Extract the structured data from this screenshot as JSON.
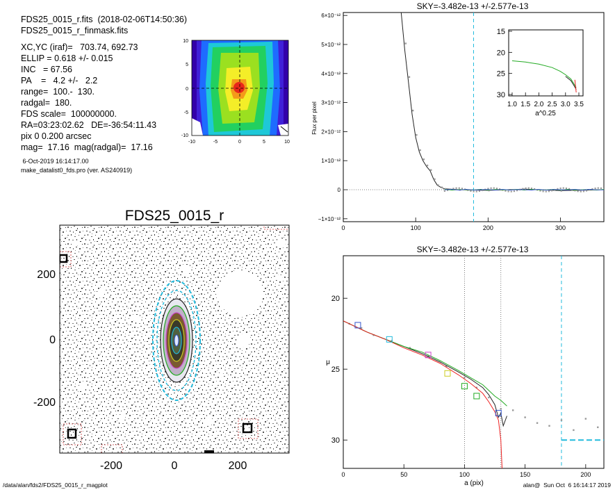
{
  "header": {
    "lines": [
      "FDS25_0015_r.fits  (2018-02-06T14:50:36)",
      "FDS25_0015_r_finmask.fits"
    ],
    "params": [
      "XC,YC (iraf)=   703.74, 692.73",
      "ELLIP = 0.618 +/- 0.015",
      "INC   = 67.56",
      "PA    =   4.2 +/-   2.2",
      "range=  100.-  130.",
      "radgal=  180.",
      "FDS scale=  100000000.",
      "RA=03:23:02.62   DE=-36:54:11.43",
      "pix 0 0.200 arcsec",
      "mag=  17.16  mag(radgal)=  17.16"
    ],
    "date": " 6-Oct-2019 16:14:17.00",
    "program": "make_datalist0_fds.pro (ver. AS240919)"
  },
  "footer": {
    "path": "/data/alan/fds2/FDS25_0015_r_magplot",
    "stamp": "alan@  Sun Oct  6 16:14:17 2019"
  },
  "colors": {
    "profile_dark": "#222222",
    "profile_green": "#22aa22",
    "profile_red": "#ee2222",
    "profile_purple": "#8844cc",
    "profile_gray": "#999999",
    "cyan": "#22bbdd",
    "sky_dotted": "#555555"
  },
  "chart_data": [
    {
      "id": "thumbnail",
      "type": "heatmap",
      "description": "false-color 2D cutout of galaxy center",
      "xlim": [
        -10,
        10
      ],
      "ylim": [
        -10,
        10
      ],
      "x_ticks": [
        "-10",
        "-5",
        "0",
        "5",
        "10"
      ],
      "y_ticks": [
        "10",
        "5",
        "0",
        "-5",
        "-10"
      ]
    },
    {
      "id": "image",
      "type": "heatmap",
      "title": "FDS25_0015_r",
      "xlim": [
        -360,
        360
      ],
      "ylim": [
        -360,
        360
      ],
      "x_ticks": [
        "-200",
        "0",
        "200"
      ],
      "y_ticks": [
        "200",
        "0",
        "-200"
      ],
      "ellipses_a": [
        30,
        55,
        90,
        130,
        180
      ],
      "ellipse_colors": [
        "#22bbdd",
        "#cccc22",
        "#cc44cc",
        "#22aa22",
        "#222222"
      ],
      "aperture_boxes": [
        [
          -350,
          260
        ],
        [
          -320,
          -300
        ],
        [
          210,
          -285
        ],
        [
          -200,
          -360
        ],
        [
          110,
          -360
        ]
      ]
    },
    {
      "id": "flux",
      "type": "line",
      "title": "SKY=-3.482e-13 +/-2.577e-13",
      "xlabel": "",
      "ylabel": "Flux per pixel",
      "xlim": [
        0,
        360
      ],
      "ylim": [
        -1.1e-12,
        6.1e-12
      ],
      "x_ticks": [
        "0",
        "100",
        "200",
        "300"
      ],
      "y_ticks": [
        "6×10⁻¹²",
        "5×10⁻¹²",
        "4×10⁻¹²",
        "3×10⁻¹²",
        "2×10⁻¹²",
        "1×10⁻¹²",
        "0",
        "−1×10⁻¹²"
      ],
      "x": [
        80,
        85,
        90,
        95,
        100,
        105,
        110,
        115,
        120,
        125,
        130,
        135,
        140,
        160,
        200,
        250,
        300,
        360
      ],
      "y": [
        6.1e-12,
        4.8e-12,
        3.7e-12,
        2.6e-12,
        1.8e-12,
        1.3e-12,
        1e-12,
        8e-13,
        6.5e-13,
        3.5e-13,
        1.5e-13,
        8e-14,
        3e-14,
        0.0,
        -2e-14,
        2e-14,
        -3e-14,
        0.0
      ],
      "sky_level": 0,
      "cyan_vline_x": 180,
      "inset": {
        "xlabel": "a^0.25",
        "xlim": [
          1.0,
          3.5
        ],
        "ylim": [
          15,
          30
        ],
        "x_ticks": [
          "1.0",
          "1.5",
          "2.0",
          "2.5",
          "3.0",
          "3.5"
        ],
        "y_ticks": [
          "15",
          "20",
          "25",
          "30"
        ],
        "x": [
          1.0,
          1.5,
          2.0,
          2.5,
          2.8,
          3.0,
          3.2,
          3.3,
          3.4
        ],
        "y": [
          22.0,
          22.3,
          22.8,
          23.6,
          24.5,
          25.3,
          26.3,
          27.3,
          28.4
        ]
      }
    },
    {
      "id": "mu",
      "type": "line",
      "title": "SKY=-3.482e-13 +/-2.577e-13",
      "xlabel": "a (pix)",
      "ylabel": "μ",
      "xlim": [
        0,
        215
      ],
      "ylim": [
        32,
        17
      ],
      "x_ticks": [
        "0",
        "50",
        "100",
        "150",
        "200"
      ],
      "y_ticks": [
        "20",
        "25",
        "30"
      ],
      "vlines_dotted": [
        100,
        130
      ],
      "vline_cyan": 180,
      "sky_dashed_level": 30.0,
      "series": [
        {
          "color_key": "profile_dark",
          "x": [
            0,
            10,
            20,
            35,
            50,
            65,
            80,
            95,
            105,
            115,
            120,
            125,
            128,
            130,
            132,
            135
          ],
          "y": [
            21.6,
            22.0,
            22.4,
            22.9,
            23.4,
            23.9,
            24.5,
            25.2,
            25.7,
            26.3,
            26.8,
            27.5,
            28.4,
            28.1,
            29.0,
            28.3
          ]
        },
        {
          "color_key": "profile_green",
          "x": [
            0,
            10,
            20,
            35,
            50,
            65,
            80,
            95,
            105,
            115,
            120,
            125,
            130,
            135
          ],
          "y": [
            21.6,
            22.0,
            22.4,
            22.9,
            23.4,
            23.8,
            24.4,
            25.1,
            25.6,
            26.1,
            26.5,
            26.9,
            27.2,
            27.6
          ]
        },
        {
          "color_key": "profile_red",
          "x": [
            0,
            10,
            20,
            35,
            50,
            65,
            80,
            95,
            105,
            115,
            120,
            125,
            128,
            130,
            131
          ],
          "y": [
            21.6,
            22.0,
            22.4,
            22.9,
            23.5,
            24.0,
            24.6,
            25.4,
            26.0,
            26.7,
            27.3,
            28.0,
            28.6,
            30.0,
            32.0
          ]
        }
      ],
      "markers": [
        {
          "x": 12,
          "y": 21.9,
          "color": "#3355cc"
        },
        {
          "x": 38,
          "y": 22.9,
          "color": "#22bbdd"
        },
        {
          "x": 70,
          "y": 24.0,
          "color": "#cc44cc"
        },
        {
          "x": 86,
          "y": 25.3,
          "color": "#cccc22"
        },
        {
          "x": 100,
          "y": 26.2,
          "color": "#22aa22"
        },
        {
          "x": 110,
          "y": 26.9,
          "color": "#22aa22"
        },
        {
          "x": 128,
          "y": 28.1,
          "color": "#3355cc"
        }
      ],
      "scatter": {
        "x": [
          5,
          15,
          25,
          40,
          55,
          70,
          85,
          100,
          110,
          120,
          130,
          140,
          150,
          160,
          170,
          180,
          190,
          200,
          210
        ],
        "y": [
          21.8,
          22.1,
          22.6,
          23.0,
          23.5,
          24.1,
          24.8,
          25.6,
          26.3,
          27.0,
          27.8,
          27.9,
          28.4,
          28.8,
          29.0,
          28.6,
          29.3,
          28.5,
          29.1
        ]
      }
    }
  ]
}
